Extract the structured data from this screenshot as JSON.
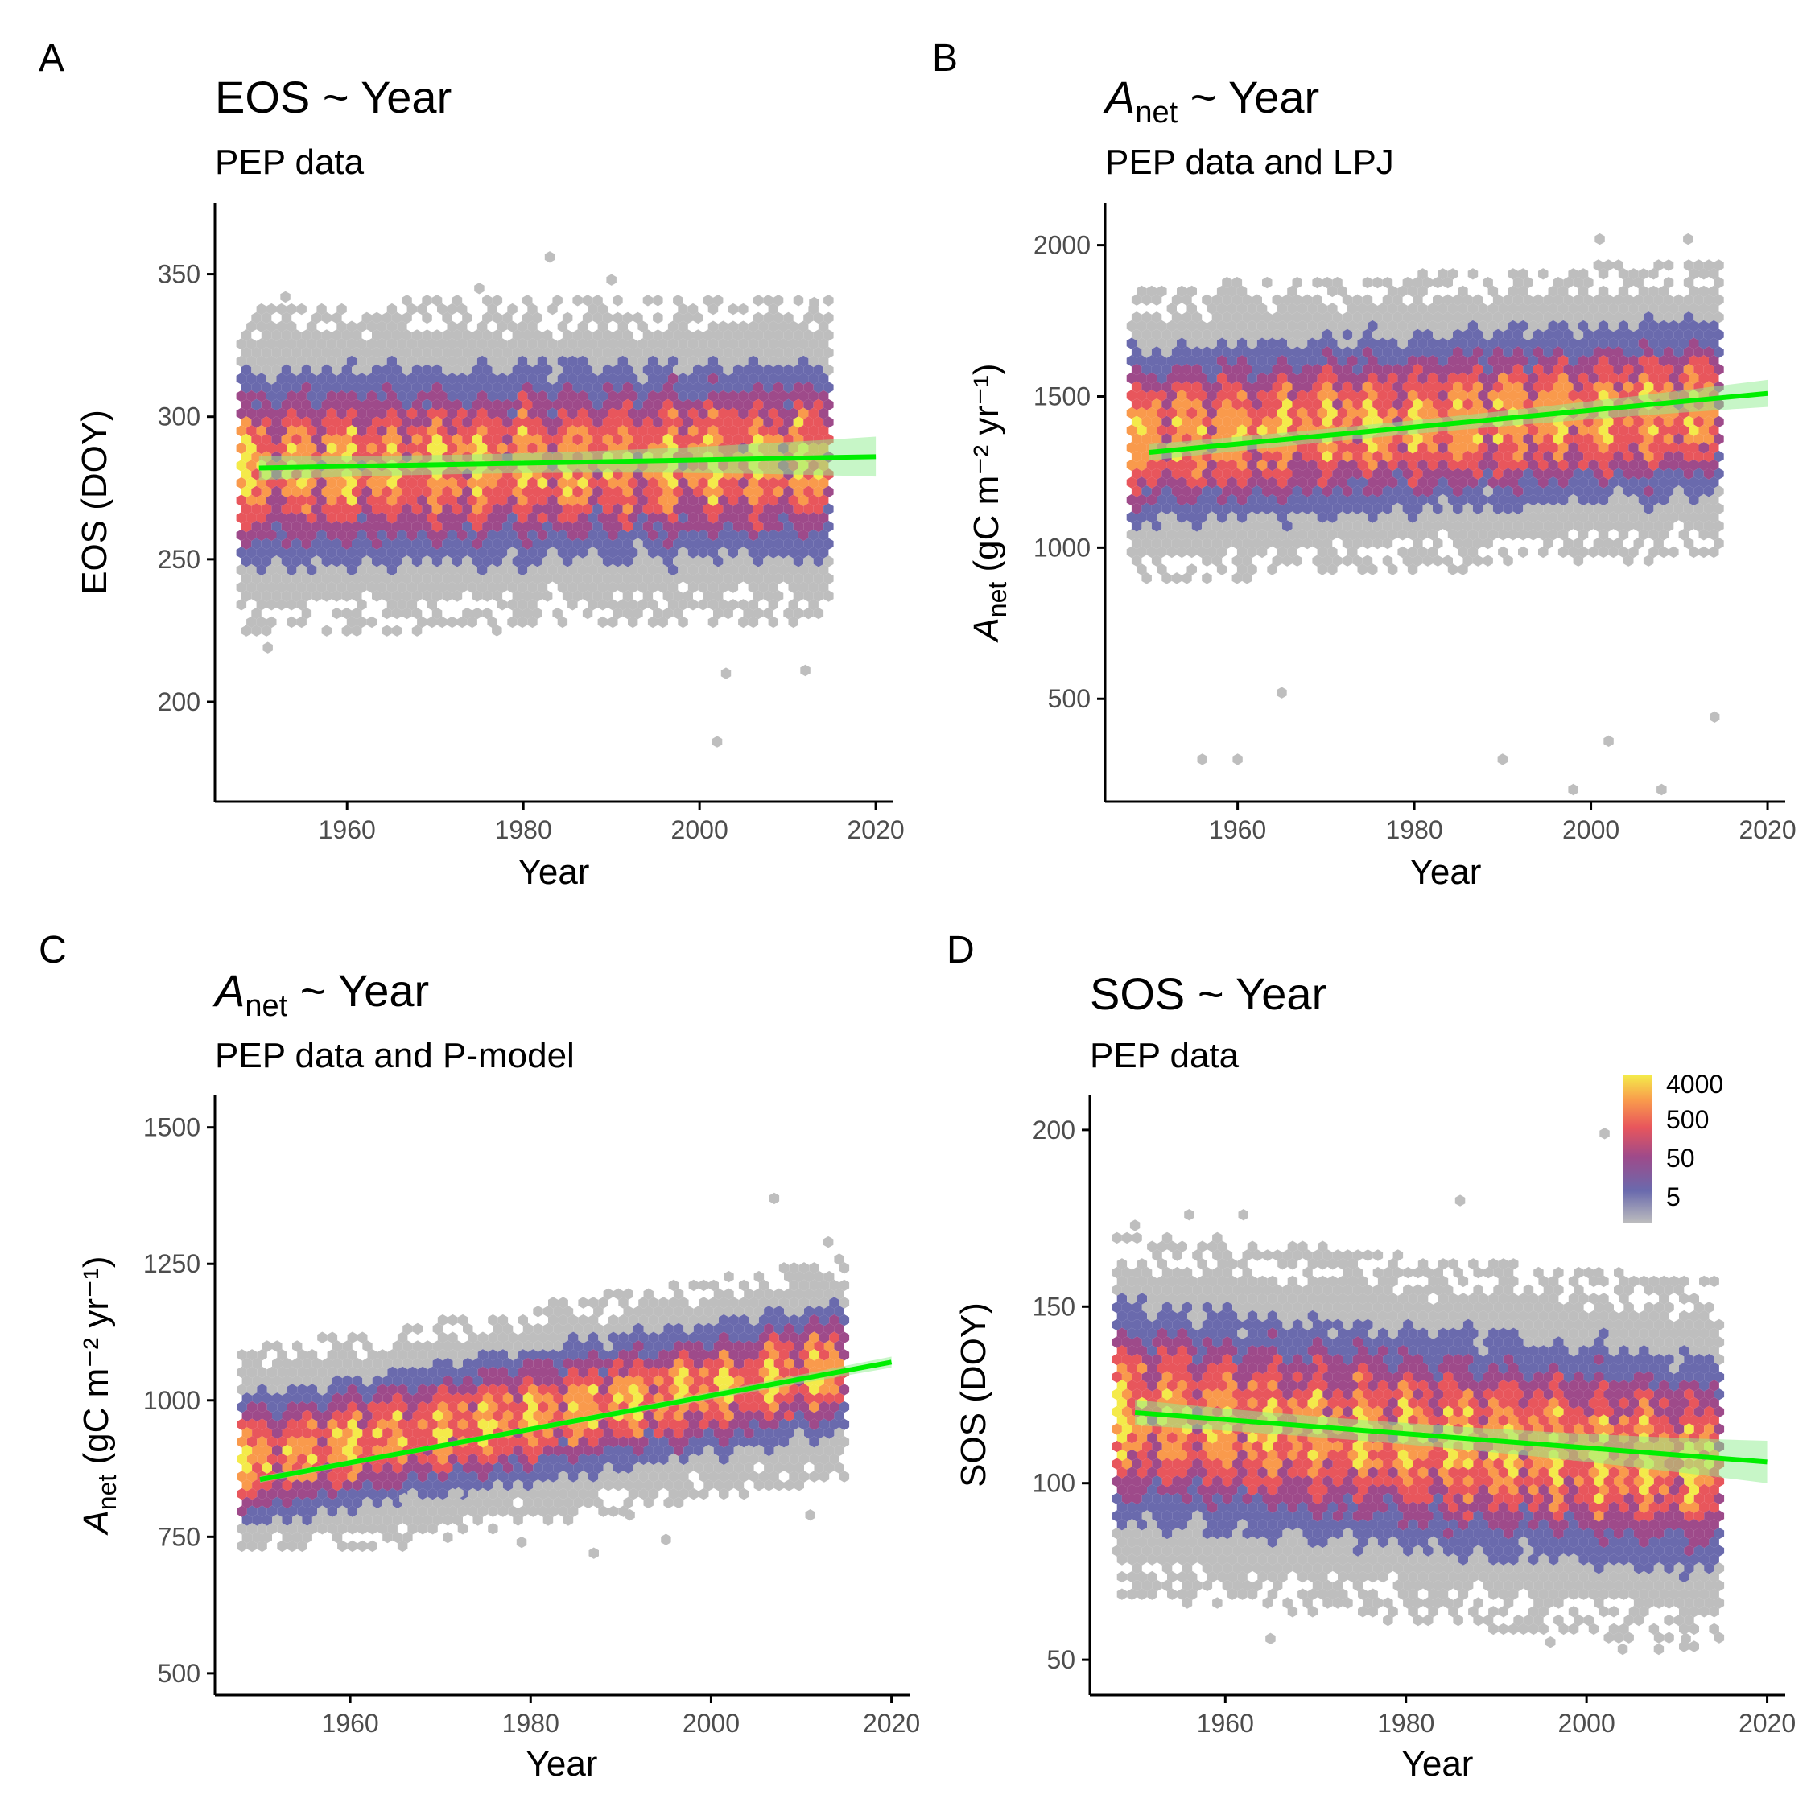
{
  "figure": {
    "colors": {
      "trend_line": "#00ee00",
      "confidence_band": "#90ee90",
      "axis": "#000000",
      "tick_label": "#4d4d4d",
      "fill_scale": [
        "#bebebe",
        "#6a6aad",
        "#9e4a8a",
        "#e8565c",
        "#f99a4c",
        "#f4ea4a"
      ]
    }
  },
  "chart_data": [
    {
      "id": "A",
      "type": "hexbin",
      "panel_letter": "A",
      "title": {
        "main": "EOS ~ Year",
        "sub_text": "",
        "tail": ""
      },
      "subtitle": "PEP data",
      "xlabel": "Year",
      "ylabel": {
        "main": "EOS (DOY)",
        "sub_text": "",
        "tail": ""
      },
      "xlim": [
        1945,
        2022
      ],
      "ylim": [
        165,
        375
      ],
      "xticks": [
        1960,
        1980,
        2000,
        2020
      ],
      "yticks": [
        200,
        250,
        300,
        350
      ],
      "data_range_x": [
        1948,
        2015
      ],
      "density": {
        "center_start": 282,
        "center_end": 285,
        "spread": 20,
        "tail_min": 186,
        "tail_max": 356,
        "outliers": [
          [
            2002,
            186
          ],
          [
            1983,
            356
          ],
          [
            1990,
            348
          ],
          [
            1953,
            342
          ],
          [
            1975,
            345
          ],
          [
            2013,
            340
          ],
          [
            1951,
            219
          ],
          [
            1977,
            225
          ],
          [
            2003,
            210
          ],
          [
            2012,
            211
          ]
        ]
      },
      "trend": {
        "x": [
          1950,
          2020
        ],
        "y": [
          282,
          286
        ],
        "band_halfwidth_end": 7
      }
    },
    {
      "id": "B",
      "type": "hexbin",
      "panel_letter": "B",
      "title": {
        "main": "A",
        "sub_text": "net",
        "tail": " ~ Year"
      },
      "subtitle": "PEP data and LPJ",
      "xlabel": "Year",
      "ylabel": {
        "main": "A",
        "sub_text": "net",
        "tail": " (gC m⁻² yr⁻¹)"
      },
      "xlim": [
        1945,
        2022
      ],
      "ylim": [
        160,
        2140
      ],
      "xticks": [
        1960,
        1980,
        2000,
        2020
      ],
      "yticks": [
        500,
        1000,
        1500,
        2000
      ],
      "data_range_x": [
        1948,
        2015
      ],
      "density": {
        "center_start": 1370,
        "center_end": 1460,
        "spread": 170,
        "tail_min": 200,
        "tail_max": 2020,
        "outliers": [
          [
            2001,
            2020
          ],
          [
            2011,
            2020
          ],
          [
            1998,
            200
          ],
          [
            2008,
            200
          ],
          [
            1956,
            300
          ],
          [
            1960,
            300
          ],
          [
            1990,
            300
          ],
          [
            2002,
            360
          ],
          [
            2014,
            440
          ],
          [
            1965,
            520
          ]
        ]
      },
      "trend": {
        "x": [
          1950,
          2020
        ],
        "y": [
          1315,
          1510
        ],
        "band_halfwidth_end": 45
      }
    },
    {
      "id": "C",
      "type": "hexbin",
      "panel_letter": "C",
      "title": {
        "main": "A",
        "sub_text": "net",
        "tail": " ~ Year"
      },
      "subtitle": "PEP data and P-model",
      "xlabel": "Year",
      "ylabel": {
        "main": "A",
        "sub_text": "net",
        "tail": " (gC m⁻² yr⁻¹)"
      },
      "xlim": [
        1945,
        2022
      ],
      "ylim": [
        460,
        1560
      ],
      "xticks": [
        1960,
        1980,
        2000,
        2020
      ],
      "yticks": [
        500,
        750,
        1000,
        1250,
        1500
      ],
      "data_range_x": [
        1948,
        2015
      ],
      "density": {
        "center_start": 890,
        "center_end": 1060,
        "spread": 70,
        "tail_min": 720,
        "tail_max": 1370,
        "outliers": [
          [
            2007,
            1370
          ],
          [
            2013,
            1290
          ],
          [
            1987,
            720
          ],
          [
            1995,
            745
          ],
          [
            1991,
            790
          ],
          [
            2011,
            790
          ],
          [
            1979,
            740
          ],
          [
            1966,
            820
          ],
          [
            1972,
            830
          ]
        ]
      },
      "trend": {
        "x": [
          1950,
          2020
        ],
        "y": [
          855,
          1070
        ],
        "band_halfwidth_end": 10
      }
    },
    {
      "id": "D",
      "type": "hexbin",
      "panel_letter": "D",
      "title": {
        "main": "SOS ~ Year",
        "sub_text": "",
        "tail": ""
      },
      "subtitle": "PEP data",
      "xlabel": "Year",
      "ylabel": {
        "main": "SOS (DOY)",
        "sub_text": "",
        "tail": ""
      },
      "xlim": [
        1945,
        2022
      ],
      "ylim": [
        40,
        210
      ],
      "xticks": [
        1960,
        1980,
        2000,
        2020
      ],
      "yticks": [
        50,
        100,
        150,
        200
      ],
      "data_range_x": [
        1948,
        2015
      ],
      "density": {
        "center_start": 120,
        "center_end": 105,
        "spread": 18,
        "tail_min": 53,
        "tail_max": 199,
        "outliers": [
          [
            2002,
            199
          ],
          [
            1986,
            180
          ],
          [
            1950,
            173
          ],
          [
            1956,
            176
          ],
          [
            1962,
            176
          ],
          [
            2004,
            53
          ],
          [
            2008,
            53
          ],
          [
            1965,
            56
          ],
          [
            1996,
            55
          ],
          [
            2011,
            56
          ]
        ]
      },
      "trend": {
        "x": [
          1950,
          2020
        ],
        "y": [
          120,
          106
        ],
        "band_halfwidth_end": 6
      },
      "legend": {
        "labels": [
          "4000",
          "500",
          "50",
          "5"
        ],
        "position": "top-right"
      }
    }
  ]
}
